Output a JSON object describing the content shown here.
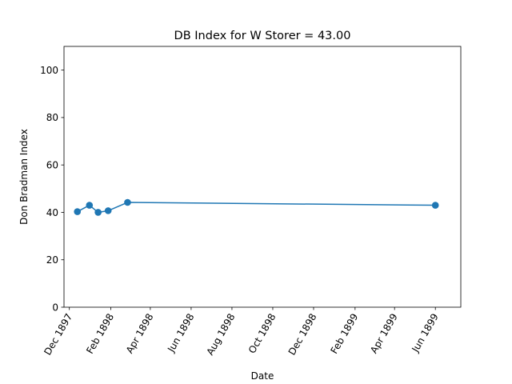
{
  "chart_data": {
    "type": "line",
    "title": "DB Index for W Storer = 43.00",
    "xlabel": "Date",
    "ylabel": "Don Bradman Index",
    "xlim": [
      "1897-11-23",
      "1899-07-09"
    ],
    "ylim": [
      0,
      110
    ],
    "yticks": [
      0,
      20,
      40,
      60,
      80,
      100
    ],
    "xticks": [
      {
        "date": "1897-12-01",
        "label": "Dec 1897"
      },
      {
        "date": "1898-02-01",
        "label": "Feb 1898"
      },
      {
        "date": "1898-04-01",
        "label": "Apr 1898"
      },
      {
        "date": "1898-06-01",
        "label": "Jun 1898"
      },
      {
        "date": "1898-08-01",
        "label": "Aug 1898"
      },
      {
        "date": "1898-10-01",
        "label": "Oct 1898"
      },
      {
        "date": "1898-12-01",
        "label": "Dec 1898"
      },
      {
        "date": "1899-02-01",
        "label": "Feb 1899"
      },
      {
        "date": "1899-04-01",
        "label": "Apr 1899"
      },
      {
        "date": "1899-06-01",
        "label": "Jun 1899"
      }
    ],
    "grid": false,
    "series": [
      {
        "color": "#1f77b4",
        "marker": "circle",
        "points": [
          {
            "x": "1897-12-13",
            "y": 40.3
          },
          {
            "x": "1897-12-31",
            "y": 43.0
          },
          {
            "x": "1898-01-13",
            "y": 40.0
          },
          {
            "x": "1898-01-28",
            "y": 40.7
          },
          {
            "x": "1898-02-26",
            "y": 44.2
          },
          {
            "x": "1899-06-01",
            "y": 43.0
          }
        ]
      }
    ]
  }
}
